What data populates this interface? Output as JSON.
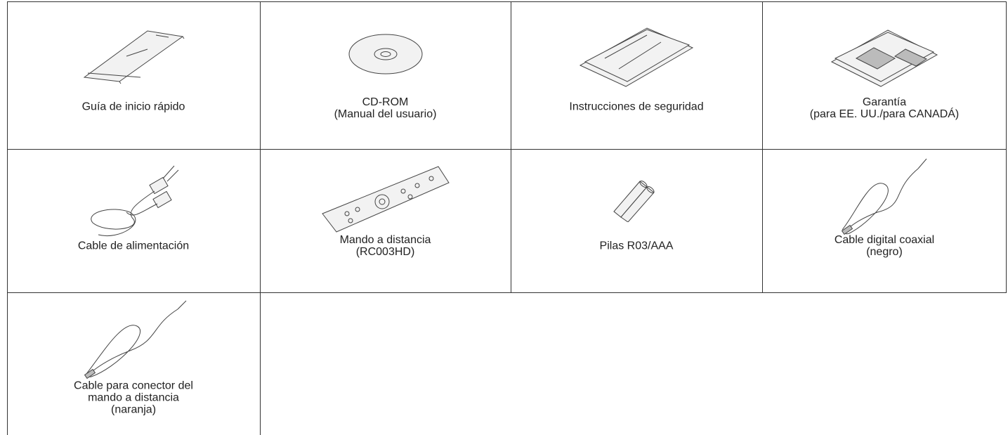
{
  "items": [
    {
      "lines": [
        "Guía de inicio rápido"
      ]
    },
    {
      "lines": [
        "CD-ROM",
        "(Manual del usuario)"
      ]
    },
    {
      "lines": [
        "Instrucciones de seguridad"
      ]
    },
    {
      "lines": [
        "Garantía",
        "(para EE. UU./para CANADÁ)"
      ]
    },
    {
      "lines": [
        "Cable de alimentación"
      ]
    },
    {
      "lines": [
        "Mando a distancia",
        "(RC003HD)"
      ]
    },
    {
      "lines": [
        "Pilas R03/AAA"
      ]
    },
    {
      "lines": [
        "Cable digital coaxial",
        "(negro)"
      ]
    },
    {
      "lines": [
        "Cable para conector del",
        "mando a distancia",
        "(naranja)"
      ]
    }
  ]
}
